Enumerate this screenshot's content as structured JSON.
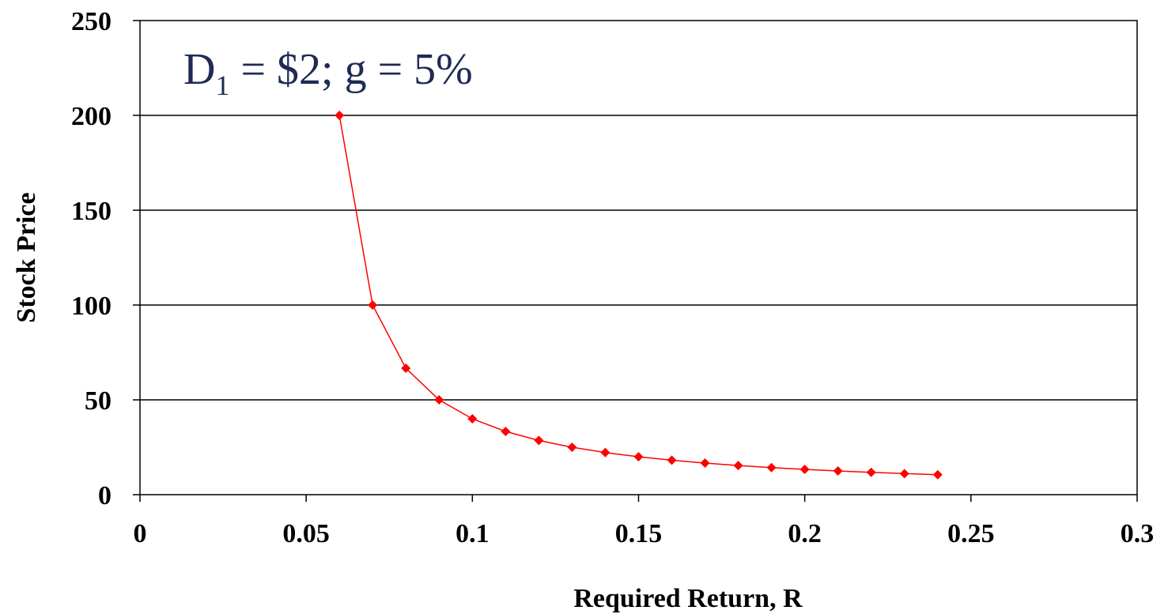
{
  "chart_data": {
    "type": "line",
    "xlabel": "Required Return, R",
    "ylabel": "Stock Price",
    "xlim": [
      0,
      0.3
    ],
    "ylim": [
      0,
      250
    ],
    "x_ticks": [
      "0",
      "0.05",
      "0.1",
      "0.15",
      "0.2",
      "0.25",
      "0.3"
    ],
    "y_ticks": [
      "0",
      "50",
      "100",
      "150",
      "200",
      "250"
    ],
    "grid": "horizontal",
    "annotation": {
      "prefix": "D",
      "subscript": "1",
      "suffix": " = $2; g = 5%"
    },
    "series": [
      {
        "color": "#ff0000",
        "marker": "diamond",
        "x": [
          0.06,
          0.07,
          0.08,
          0.09,
          0.1,
          0.11,
          0.12,
          0.13,
          0.14,
          0.15,
          0.16,
          0.17,
          0.18,
          0.19,
          0.2,
          0.21,
          0.22,
          0.23,
          0.24
        ],
        "y": [
          200,
          100,
          66.67,
          50,
          40,
          33.33,
          28.57,
          25,
          22.22,
          20,
          18.18,
          16.67,
          15.38,
          14.29,
          13.33,
          12.5,
          11.76,
          11.11,
          10.53
        ]
      }
    ]
  }
}
